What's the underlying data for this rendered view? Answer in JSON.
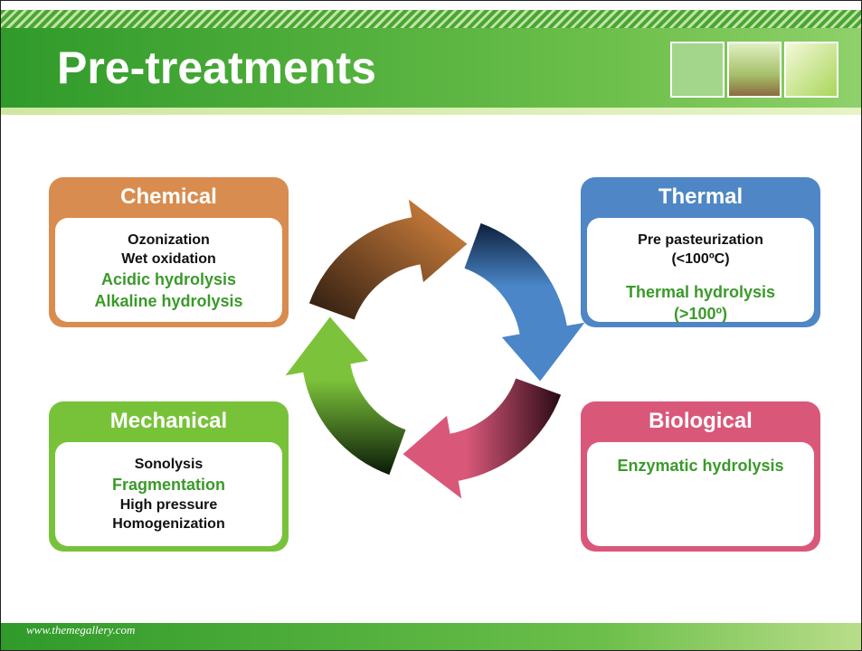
{
  "header": {
    "title": "Pre-treatments"
  },
  "boxes": [
    {
      "title": "Chemical",
      "items": [
        "Ozonization",
        "Wet oxidation",
        "Acidic hydrolysis",
        "Alkaline hydrolysis"
      ]
    },
    {
      "title": "Thermal",
      "items": [
        "Pre pasteurization",
        "(<100ºC)",
        "Thermal hydrolysis",
        "(>100º)"
      ]
    },
    {
      "title": "Mechanical",
      "items": [
        "Sonolysis",
        "Fragmentation",
        "High pressure",
        "Homogenization"
      ]
    },
    {
      "title": "Biological",
      "items": [
        "Enzymatic hydrolysis"
      ]
    }
  ],
  "footer": {
    "url": "www.themegallery.com"
  }
}
